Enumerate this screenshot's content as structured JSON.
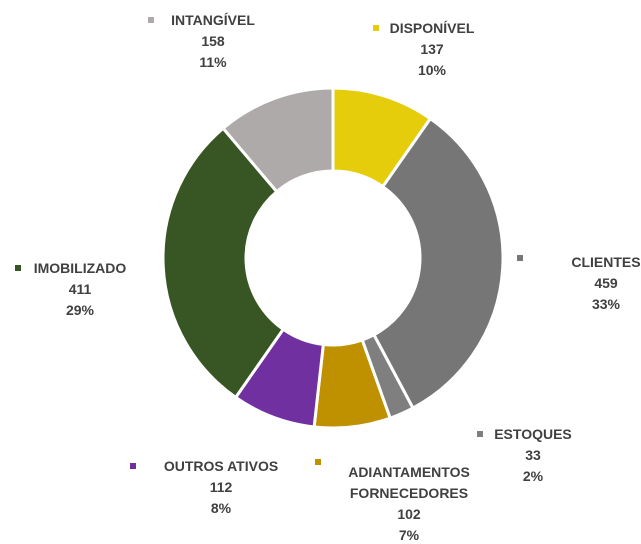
{
  "chart_data": {
    "type": "donut",
    "categories": [
      "DISPONÍVEL",
      "CLIENTES",
      "ESTOQUES",
      "ADIANTAMENTOS FORNECEDORES",
      "OUTROS ATIVOS",
      "IMOBILIZADO",
      "INTANGÍVEL"
    ],
    "values": [
      137,
      459,
      33,
      102,
      112,
      411,
      158
    ],
    "percent_labels": [
      "10%",
      "33%",
      "2%",
      "7%",
      "8%",
      "29%",
      "11%"
    ],
    "colors": [
      "#e6cd0c",
      "#767676",
      "#7f7f7f",
      "#bf9000",
      "#7030a0",
      "#375623",
      "#aeaaaa"
    ]
  }
}
